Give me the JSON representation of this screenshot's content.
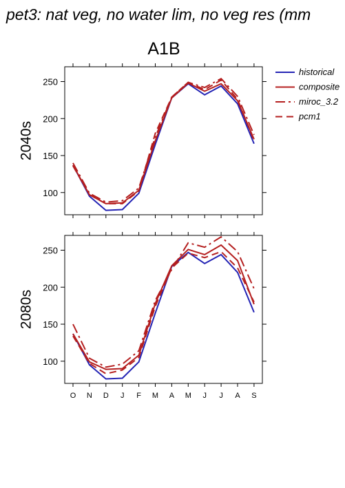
{
  "title": "pet3: nat veg, no water lim, no veg res (mm",
  "subtitle": "A1B",
  "colors": {
    "historical": "#2323b4",
    "future": "#b41e1e"
  },
  "chart_data": {
    "type": "line",
    "x": [
      "O",
      "N",
      "D",
      "J",
      "F",
      "M",
      "A",
      "M",
      "J",
      "J",
      "A",
      "S"
    ],
    "ylim": [
      70,
      270
    ],
    "yticks": [
      100,
      150,
      200,
      250
    ],
    "grid": false,
    "legend_position": "top-right",
    "legend": [
      {
        "name": "historical",
        "style": "solid"
      },
      {
        "name": "composite",
        "style": "solid"
      },
      {
        "name": "miroc_3.2",
        "style": "dashdot"
      },
      {
        "name": "pcm1",
        "style": "dashed"
      }
    ],
    "panels": [
      {
        "label": "2040s",
        "series": [
          {
            "name": "historical",
            "style": "solid",
            "color": "#2323b4",
            "values": [
              137,
              95,
              76,
              77,
              99,
              165,
              228,
              247,
              232,
              244,
              220,
              166
            ]
          },
          {
            "name": "composite",
            "style": "solid",
            "color": "#b41e1e",
            "values": [
              137,
              97,
              85,
              86,
              103,
              170,
              228,
              248,
              237,
              247,
              224,
              172
            ]
          },
          {
            "name": "miroc_3.2",
            "style": "dashdot",
            "color": "#b41e1e",
            "values": [
              140,
              99,
              87,
              89,
              106,
              175,
              229,
              249,
              242,
              254,
              230,
              178
            ]
          },
          {
            "name": "pcm1",
            "style": "dashed",
            "color": "#b41e1e",
            "values": [
              136,
              97,
              85,
              85,
              102,
              180,
              229,
              249,
              239,
              252,
              226,
              170
            ]
          }
        ]
      },
      {
        "label": "2080s",
        "series": [
          {
            "name": "historical",
            "style": "solid",
            "color": "#2323b4",
            "values": [
              137,
              95,
              76,
              77,
              99,
              165,
              228,
              247,
              232,
              244,
              220,
              166
            ]
          },
          {
            "name": "composite",
            "style": "solid",
            "color": "#b41e1e",
            "values": [
              137,
              99,
              89,
              90,
              108,
              178,
              229,
              251,
              244,
              257,
              236,
              177
            ]
          },
          {
            "name": "miroc_3.2",
            "style": "dashdot",
            "color": "#b41e1e",
            "values": [
              150,
              104,
              92,
              96,
              114,
              182,
              224,
              260,
              254,
              268,
              248,
              198
            ]
          },
          {
            "name": "pcm1",
            "style": "dashed",
            "color": "#b41e1e",
            "values": [
              134,
              97,
              83,
              88,
              105,
              174,
              226,
              246,
              240,
              248,
              226,
              180
            ]
          }
        ]
      }
    ]
  }
}
